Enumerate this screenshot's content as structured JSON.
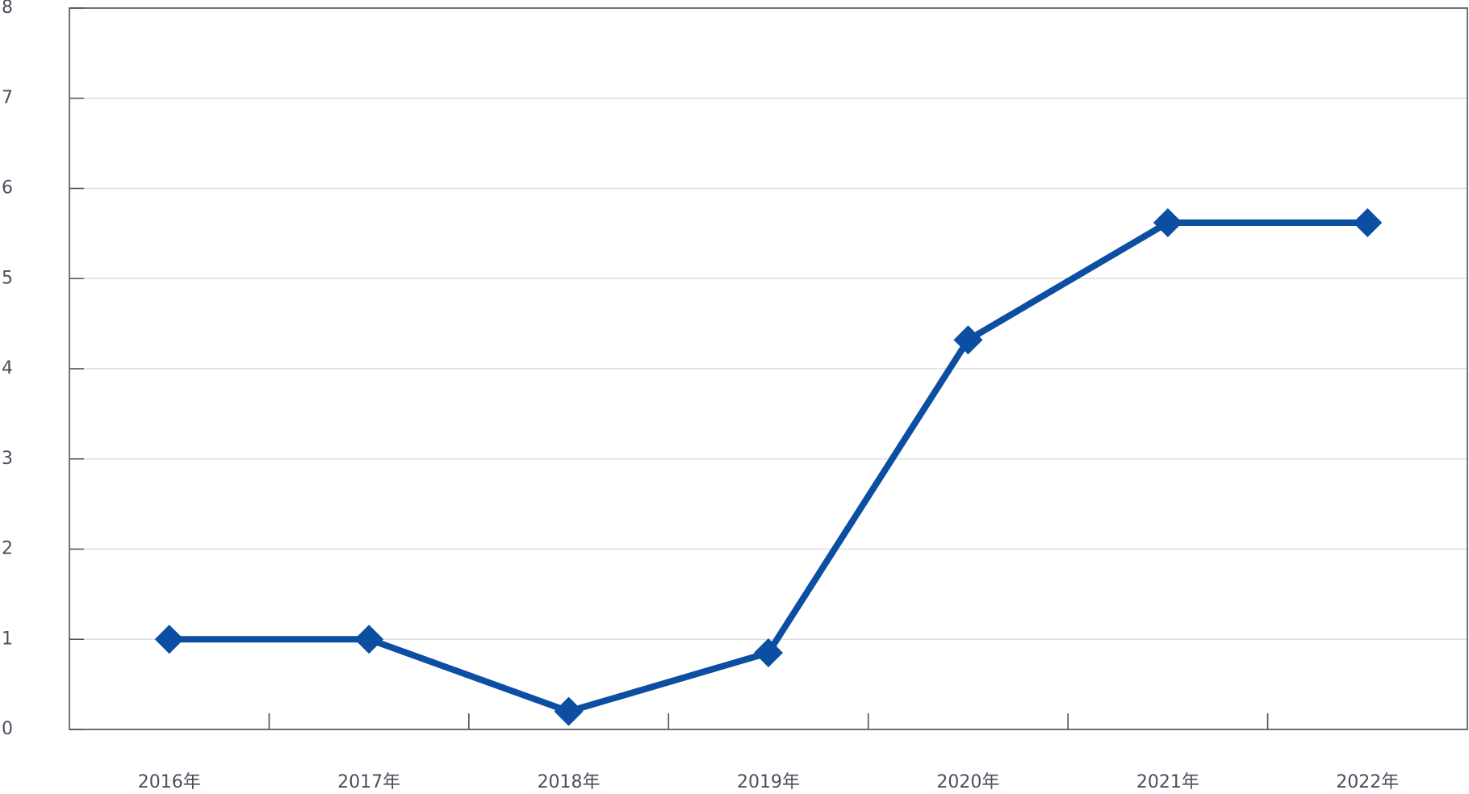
{
  "chart_data": {
    "type": "line",
    "categories": [
      "2016年",
      "2017年",
      "2018年",
      "2019年",
      "2020年",
      "2021年",
      "2022年"
    ],
    "series": [
      {
        "color": "#0b4ea2",
        "values": [
          1,
          1,
          0.2,
          0.85,
          4.32,
          5.62,
          5.62
        ]
      }
    ],
    "ylim": [
      0,
      8
    ],
    "yticks": [
      0,
      1,
      2,
      3,
      4,
      5,
      6,
      7,
      8
    ],
    "grid": true
  }
}
